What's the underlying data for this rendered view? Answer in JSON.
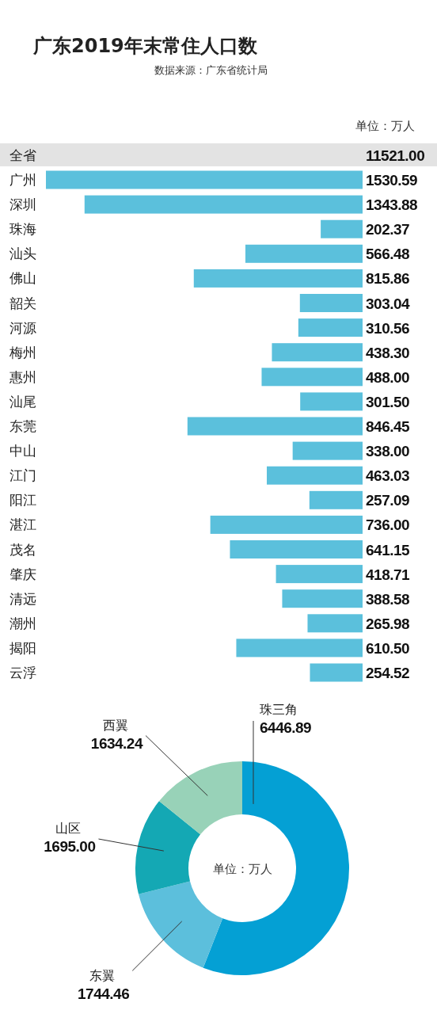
{
  "chart_data": [
    {
      "type": "bar",
      "orientation": "horizontal",
      "title": "广东2019年末常住人口数",
      "subtitle": "数据来源：广东省统计局",
      "annotations": [
        "单位：万人",
        "全省",
        "11521.00"
      ],
      "categories": [
        "广州",
        "深圳",
        "珠海",
        "汕头",
        "佛山",
        "韶关",
        "河源",
        "梅州",
        "惠州",
        "汕尾",
        "东莞",
        "中山",
        "江门",
        "阳江",
        "湛江",
        "茂名",
        "肇庆",
        "清远",
        "潮州",
        "揭阳",
        "云浮"
      ],
      "values": [
        1530.59,
        1343.88,
        202.37,
        566.48,
        815.86,
        303.04,
        310.56,
        438.3,
        488.0,
        301.5,
        846.45,
        338.0,
        463.03,
        257.09,
        736.0,
        641.15,
        418.71,
        388.58,
        265.98,
        610.5,
        254.52
      ],
      "value_labels": [
        "1530.59",
        "1343.88",
        "202.37",
        "566.48",
        "815.86",
        "303.04",
        "310.56",
        "438.30",
        "488.00",
        "301.50",
        "846.45",
        "338.00",
        "463.03",
        "257.09",
        "736.00",
        "641.15",
        "418.71",
        "388.58",
        "265.98",
        "610.50",
        "254.52"
      ],
      "color": "#5bc0dc"
    },
    {
      "type": "donut",
      "annotations": [
        "单位：万人"
      ],
      "categories": [
        "珠三角",
        "东翼",
        "山区",
        "西翼"
      ],
      "values": [
        6446.89,
        1744.46,
        1695.0,
        1634.24
      ],
      "value_labels": [
        "6446.89",
        "1744.46",
        "1695.00",
        "1634.24"
      ],
      "colors": [
        "#04a0d4",
        "#5cbfdc",
        "#14a8b4",
        "#98d2b8"
      ]
    }
  ]
}
